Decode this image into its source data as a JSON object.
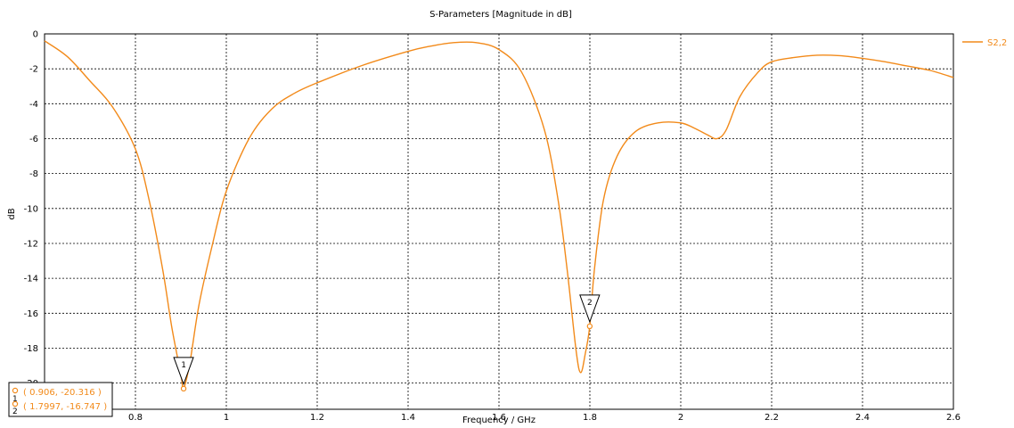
{
  "chart_data": {
    "type": "line",
    "title": "S-Parameters [Magnitude in dB]",
    "xlabel": "Frequency / GHz",
    "ylabel": "dB",
    "xlim": [
      0.6,
      2.6
    ],
    "ylim": [
      -21.5,
      0
    ],
    "x_ticks": [
      0.8,
      1,
      1.2,
      1.4,
      1.6,
      1.8,
      2,
      2.2,
      2.4,
      2.6
    ],
    "x_tick_labels": [
      "0.8",
      "1",
      "1.2",
      "1.4",
      "1.6",
      "1.8",
      "2",
      "2.2",
      "2.4",
      "2.6"
    ],
    "y_ticks": [
      0,
      -2,
      -4,
      -6,
      -8,
      -10,
      -12,
      -14,
      -16,
      -18,
      -20
    ],
    "y_tick_labels": [
      "0",
      "-2",
      "-4",
      "-6",
      "-8",
      "-10",
      "-12",
      "-14",
      "-16",
      "-18",
      "-20"
    ],
    "grid": true,
    "legend_position": "right",
    "series": [
      {
        "name": "S2,2",
        "color": "#f28a1a",
        "x": [
          0.6,
          0.65,
          0.7,
          0.75,
          0.8,
          0.83,
          0.86,
          0.88,
          0.9,
          0.906,
          0.92,
          0.94,
          0.97,
          1.0,
          1.05,
          1.1,
          1.15,
          1.2,
          1.3,
          1.4,
          1.45,
          1.5,
          1.55,
          1.6,
          1.65,
          1.7,
          1.73,
          1.75,
          1.77,
          1.78,
          1.79,
          1.7997,
          1.81,
          1.83,
          1.86,
          1.9,
          1.95,
          2.0,
          2.03,
          2.06,
          2.08,
          2.1,
          2.13,
          2.17,
          2.2,
          2.25,
          2.3,
          2.35,
          2.4,
          2.45,
          2.5,
          2.55,
          2.6
        ],
        "y": [
          -0.4,
          -1.3,
          -2.7,
          -4.2,
          -6.6,
          -9.5,
          -13.5,
          -16.8,
          -19.5,
          -20.3,
          -18.8,
          -15.5,
          -12.0,
          -9.0,
          -6.0,
          -4.3,
          -3.4,
          -2.8,
          -1.8,
          -1.0,
          -0.7,
          -0.5,
          -0.5,
          -0.9,
          -2.2,
          -5.5,
          -9.5,
          -13.5,
          -18.2,
          -19.4,
          -18.3,
          -16.75,
          -13.5,
          -9.5,
          -7.0,
          -5.6,
          -5.1,
          -5.1,
          -5.4,
          -5.8,
          -6.0,
          -5.5,
          -3.6,
          -2.2,
          -1.6,
          -1.35,
          -1.22,
          -1.25,
          -1.4,
          -1.6,
          -1.85,
          -2.1,
          -2.5
        ]
      }
    ],
    "markers": [
      {
        "label": "1",
        "x": 0.906,
        "y": -20.316,
        "readout": "( 0.906, -20.316 )"
      },
      {
        "label": "2",
        "x": 1.7997,
        "y": -16.747,
        "readout": "( 1.7997, -16.747 )"
      }
    ]
  }
}
